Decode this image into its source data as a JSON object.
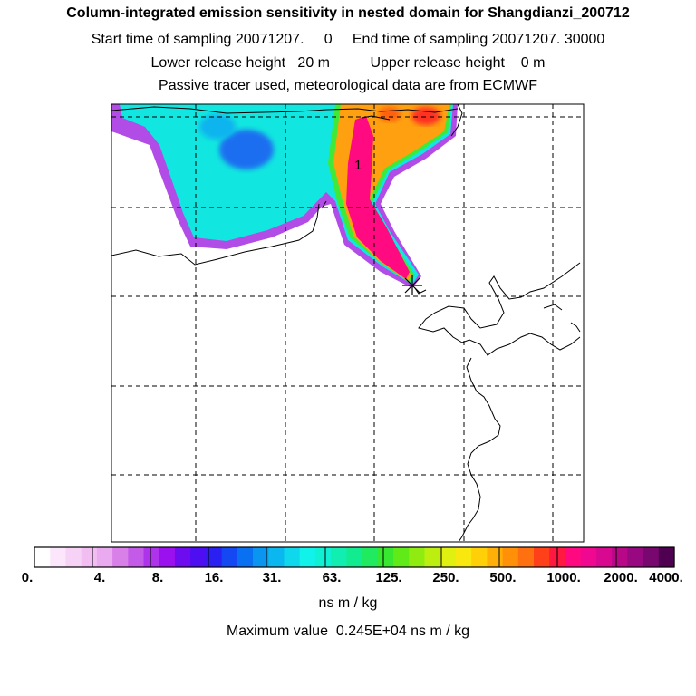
{
  "title": "Column-integrated emission sensitivity in nested domain for Shangdianzi_200712",
  "sampling": {
    "start_label": "Start time of sampling",
    "start_value": "20071207.     0",
    "end_label": "End time of sampling",
    "end_value": "20071207. 30000"
  },
  "release": {
    "lower_label": "Lower release height",
    "lower_value": "20 m",
    "upper_label": "Upper release height",
    "upper_value": "0 m"
  },
  "subtitle": "Passive tracer used, meteorological data are from ECMWF",
  "map": {
    "receptor_label": "1",
    "receptor_marker_icon": "asterisk-icon"
  },
  "colorbar": {
    "tick_labels": [
      "0.",
      "4.",
      "8.",
      "16.",
      "31.",
      "63.",
      "125.",
      "250.",
      "500.",
      "1000.",
      "2000.",
      "4000."
    ],
    "units": "ns m / kg",
    "colors": [
      "#ffffff",
      "#fbe6fb",
      "#f7d2f7",
      "#f2bef2",
      "#eaaaf0",
      "#d87fe8",
      "#c45ae8",
      "#ad34ea",
      "#9a10ee",
      "#6e0cf0",
      "#4d0ef2",
      "#2a20f2",
      "#1448f2",
      "#0a70f2",
      "#0a96f0",
      "#0ab8ef",
      "#10d8ec",
      "#10f2ea",
      "#10f0d2",
      "#10eeb2",
      "#12ec90",
      "#20ea60",
      "#38e830",
      "#60ea18",
      "#90ec10",
      "#bcee10",
      "#e0f010",
      "#f8e810",
      "#ffd008",
      "#ffb008",
      "#ff9008",
      "#ff7010",
      "#ff4018",
      "#ff1840",
      "#ff0880",
      "#f00890",
      "#d80890",
      "#b80888",
      "#980880",
      "#780870",
      "#500050"
    ]
  },
  "max_value": {
    "label": "Maximum value",
    "value": "0.245E+04 ns m / kg"
  }
}
